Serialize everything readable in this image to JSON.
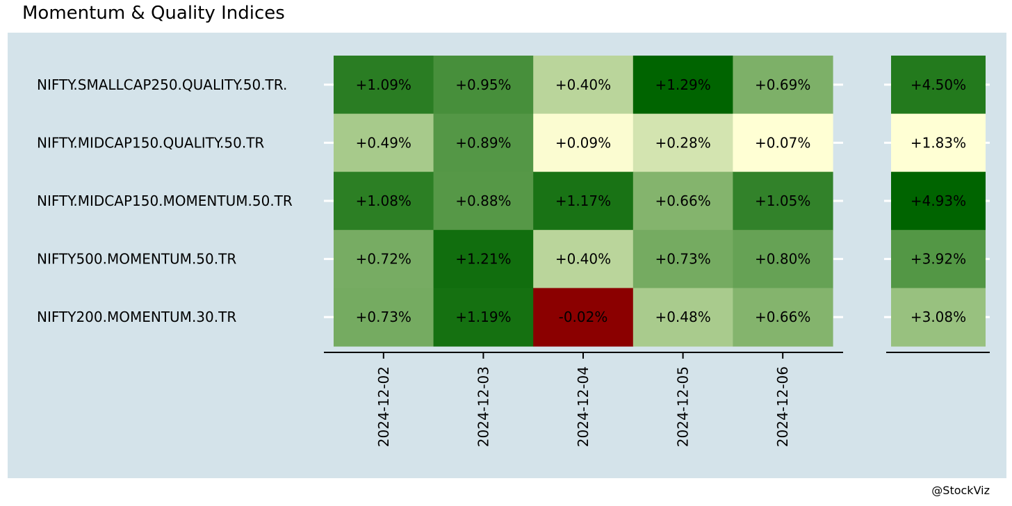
{
  "title": "Momentum & Quality Indices",
  "credit": "@StockViz",
  "chart_data": {
    "type": "heatmap",
    "dates": [
      "2024-12-02",
      "2024-12-03",
      "2024-12-04",
      "2024-12-05",
      "2024-12-06"
    ],
    "rows": [
      {
        "name": "NIFTY.SMALLCAP250.QUALITY.50.TR.",
        "daily": [
          1.09,
          0.95,
          0.4,
          1.29,
          0.69
        ],
        "total": 4.5
      },
      {
        "name": "NIFTY.MIDCAP150.QUALITY.50.TR",
        "daily": [
          0.49,
          0.89,
          0.09,
          0.28,
          0.07
        ],
        "total": 1.83
      },
      {
        "name": "NIFTY.MIDCAP150.MOMENTUM.50.TR",
        "daily": [
          1.08,
          0.88,
          1.17,
          0.66,
          1.05
        ],
        "total": 4.93
      },
      {
        "name": "NIFTY500.MOMENTUM.50.TR",
        "daily": [
          0.72,
          1.21,
          0.4,
          0.73,
          0.8
        ],
        "total": 3.92
      },
      {
        "name": "NIFTY200.MOMENTUM.30.TR",
        "daily": [
          0.73,
          1.19,
          -0.02,
          0.48,
          0.66
        ],
        "total": 3.08
      }
    ],
    "value_format": "percent-signed-2dp",
    "color_scale": {
      "negative": "#8b0000",
      "low": "#ffffd4",
      "high": "#006400"
    }
  }
}
